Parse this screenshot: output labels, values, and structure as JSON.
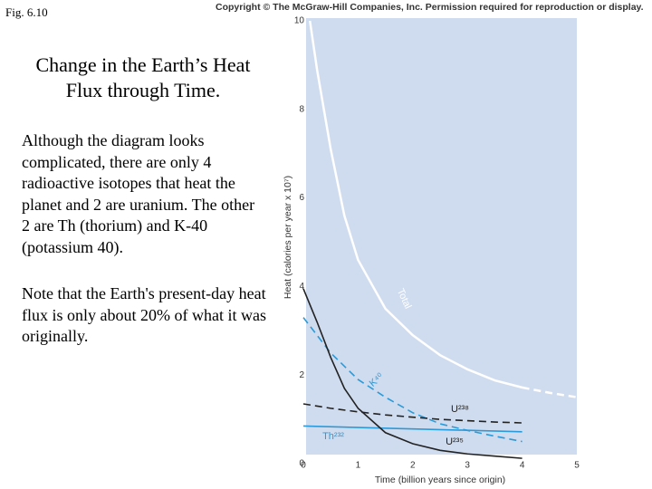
{
  "figure_label": "Fig. 6.10",
  "heading": "Change in the Earth’s Heat Flux through Time.",
  "paragraphs": [
    "Although the diagram looks complicated, there are only 4 radioactive isotopes that heat the planet and 2 are uranium. The other 2 are Th (thorium) and K-40 (potassium 40).",
    "Note that the Earth's present-day heat flux is only about 20% of what it was originally."
  ],
  "copyright": "Copyright © The McGraw-Hill Companies, Inc. Permission required for reproduction or display.",
  "chart_data": {
    "type": "line",
    "x_label": "Time (billion years since origin)",
    "y_label": "Heat (calories per year x 10⁷)",
    "xlim": [
      0,
      5
    ],
    "ylim": [
      0,
      10
    ],
    "xticks": [
      0,
      1,
      2,
      3,
      4,
      5
    ],
    "yticks": [
      0,
      2,
      4,
      6,
      8,
      10
    ],
    "background": "#cfdcef",
    "series": [
      {
        "name": "Total",
        "color": "#ffffff",
        "dashed": false,
        "x": [
          0.12,
          0.25,
          0.5,
          0.75,
          1,
          1.5,
          2,
          2.5,
          3,
          3.5,
          4
        ],
        "values": [
          10,
          8.9,
          7.1,
          5.6,
          4.6,
          3.5,
          2.9,
          2.45,
          2.13,
          1.88,
          1.72
        ]
      },
      {
        "color": "#ffffff",
        "dashed": true,
        "x": [
          4,
          4.5,
          5
        ],
        "values": [
          1.72,
          1.6,
          1.5
        ]
      },
      {
        "name": "K⁴⁰",
        "color": "#2a9bd8",
        "dashed": true,
        "x": [
          0,
          0.5,
          1,
          1.5,
          2,
          2.5,
          3,
          3.5,
          4
        ],
        "values": [
          3.3,
          2.5,
          1.9,
          1.5,
          1.15,
          0.9,
          0.75,
          0.62,
          0.5
        ]
      },
      {
        "name": "U²³⁸",
        "color": "#222222",
        "dashed": true,
        "x": [
          0,
          0.5,
          1,
          1.5,
          2,
          2.5,
          3,
          3.5,
          4
        ],
        "values": [
          1.35,
          1.25,
          1.17,
          1.1,
          1.05,
          1.0,
          0.97,
          0.94,
          0.92
        ]
      },
      {
        "name": "Th²³²",
        "color": "#2a9bd8",
        "dashed": false,
        "x": [
          0,
          4
        ],
        "values": [
          0.85,
          0.72
        ]
      },
      {
        "name": "U²³⁵",
        "color": "#222222",
        "dashed": false,
        "x": [
          0,
          0.25,
          0.5,
          0.75,
          1,
          1.5,
          2,
          2.5,
          3,
          3.5,
          4
        ],
        "values": [
          3.95,
          3.2,
          2.4,
          1.7,
          1.25,
          0.7,
          0.45,
          0.3,
          0.22,
          0.17,
          0.12
        ]
      }
    ]
  }
}
